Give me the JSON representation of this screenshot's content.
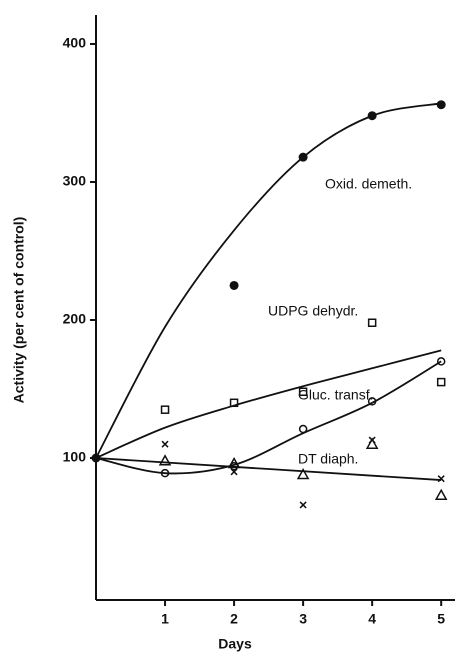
{
  "chart_data": {
    "type": "line",
    "xlabel": "Days",
    "ylabel": "Activity (per cent of control)",
    "x": [
      0,
      1,
      2,
      3,
      4,
      5
    ],
    "xlim": [
      0,
      5.2
    ],
    "ylim": [
      0,
      421
    ],
    "xticks": [
      1,
      2,
      3,
      4,
      5
    ],
    "yticks": [
      100,
      200,
      300,
      400
    ],
    "color": "#111111",
    "series": [
      {
        "name": "Oxid. demeth.",
        "marker": "dot",
        "values": [
          100,
          null,
          225,
          318,
          348,
          356
        ],
        "fit": [
          100,
          195,
          265,
          318,
          348,
          357
        ]
      },
      {
        "name": "UDPG dehydr.",
        "marker": "square",
        "values": [
          null,
          135,
          140,
          148,
          198,
          155
        ],
        "fit": [
          100,
          122,
          138,
          152,
          165,
          178
        ]
      },
      {
        "name": "Gluc. transf.",
        "marker": "circle",
        "values": [
          null,
          89,
          94,
          121,
          141,
          170
        ],
        "fit": [
          100,
          89,
          95,
          118,
          140,
          170
        ]
      },
      {
        "marker": "triangle",
        "values": [
          null,
          98,
          96,
          88,
          110,
          73
        ]
      },
      {
        "name": "DT diaph.",
        "marker": "x",
        "values": [
          null,
          110,
          90,
          66,
          113,
          85
        ],
        "fit": [
          100,
          null,
          null,
          null,
          null,
          84
        ]
      }
    ]
  }
}
